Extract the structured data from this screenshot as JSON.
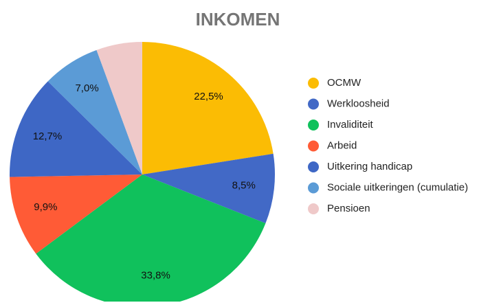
{
  "chart_data": {
    "type": "pie",
    "title": "INKOMEN",
    "categories": [
      "OCMW",
      "Werkloosheid",
      "Invaliditeit",
      "Arbeid",
      "Uitkering handicap",
      "Sociale uitkeringen (cumulatie)",
      "Pensioen"
    ],
    "values": [
      22.5,
      8.5,
      33.8,
      9.9,
      12.7,
      7.0,
      5.6
    ],
    "value_labels": [
      "22,5%",
      "8,5%",
      "33,8%",
      "9,9%",
      "12,7%",
      "7,0%",
      null
    ],
    "colors": [
      "#fbbc04",
      "#4269c6",
      "#10c15c",
      "#ff5b36",
      "#3e67c5",
      "#5b9bd6",
      "#efc9c9"
    ],
    "legend": "right"
  }
}
